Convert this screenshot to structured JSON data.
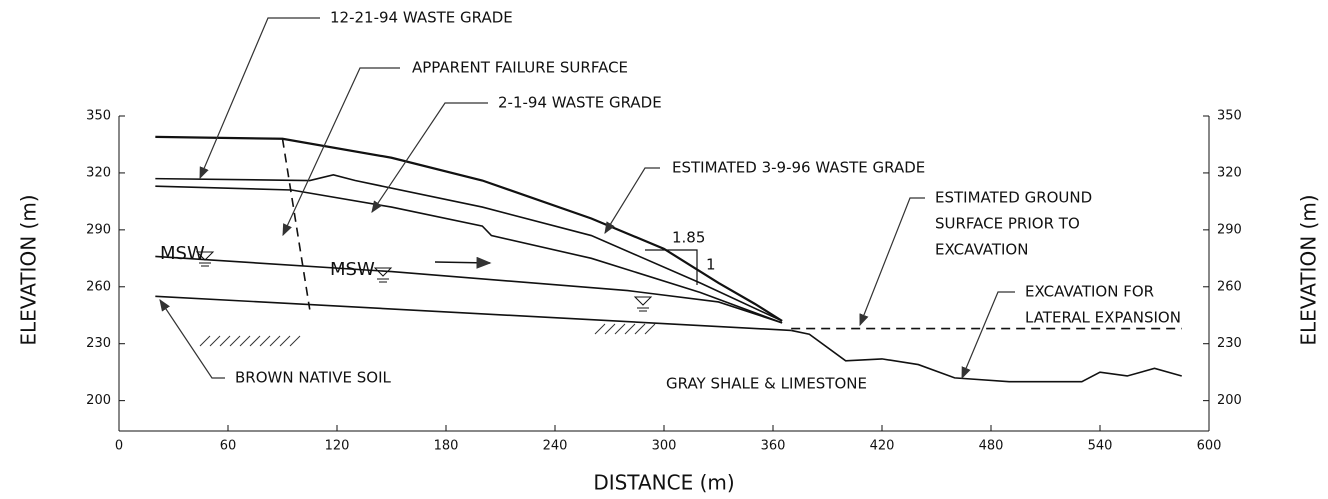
{
  "chart_data": {
    "type": "line",
    "xlabel": "DISTANCE (m)",
    "ylabel": "ELEVATION (m)",
    "xlim": [
      0,
      600
    ],
    "ylim": [
      184,
      350
    ],
    "xticks": [
      0,
      60,
      120,
      180,
      240,
      300,
      360,
      420,
      480,
      540,
      600
    ],
    "yticks": [
      200,
      230,
      260,
      290,
      320,
      350
    ],
    "y2lim": [
      184,
      350
    ],
    "y2ticks": [
      200,
      230,
      260,
      290,
      320,
      350
    ],
    "series": [
      {
        "color": "#111",
        "dashed": false,
        "x": [
          20,
          90,
          150,
          200,
          260,
          300,
          330,
          350,
          365
        ],
        "values": [
          339,
          338,
          328,
          316,
          296,
          280,
          262,
          251,
          242
        ]
      },
      {
        "color": "#111",
        "dashed": false,
        "x": [
          20,
          105,
          118,
          130,
          200,
          260,
          320,
          365
        ],
        "values": [
          317,
          316,
          319,
          316,
          302,
          287,
          262,
          242
        ]
      },
      {
        "color": "#111",
        "dashed": false,
        "x": [
          20,
          95,
          150,
          200,
          205,
          260,
          320,
          365
        ],
        "values": [
          313,
          311,
          302,
          292,
          287,
          275,
          257,
          241
        ]
      },
      {
        "color": "#111",
        "dashed": false,
        "x": [
          20,
          150,
          280,
          330,
          365
        ],
        "values": [
          276,
          268,
          258,
          252,
          241
        ]
      },
      {
        "color": "#111",
        "dashed": false,
        "x": [
          20,
          370
        ],
        "values": [
          255,
          237
        ]
      },
      {
        "color": "#111",
        "dashed": false,
        "x": [
          370,
          380,
          400,
          420,
          440,
          460,
          490,
          530,
          540,
          555,
          570,
          585
        ],
        "values": [
          237,
          235,
          221,
          222,
          219,
          212,
          210,
          210,
          215,
          213,
          217,
          213
        ]
      },
      {
        "color": "#111",
        "dashed": true,
        "x": [
          370,
          585
        ],
        "values": [
          238,
          238
        ]
      },
      {
        "color": "#111",
        "dashed": true,
        "x": [
          90,
          105
        ],
        "values": [
          338,
          248
        ]
      }
    ],
    "annotations": [
      {
        "lines": [
          "12-21-94 WASTE GRADE"
        ]
      },
      {
        "lines": [
          "APPARENT FAILURE SURFACE"
        ]
      },
      {
        "lines": [
          "2-1-94 WASTE GRADE"
        ]
      },
      {
        "lines": [
          "ESTIMATED 3-9-96 WASTE GRADE"
        ]
      },
      {
        "lines": [
          "ESTIMATED GROUND",
          "SURFACE PRIOR TO",
          "EXCAVATION"
        ]
      },
      {
        "lines": [
          "EXCAVATION FOR",
          "LATERAL EXPANSION"
        ]
      },
      {
        "lines": [
          "BROWN NATIVE SOIL"
        ]
      },
      {
        "lines": [
          "GRAY SHALE & LIMESTONE"
        ]
      },
      {
        "lines": [
          "MSW"
        ]
      },
      {
        "lines": [
          "MSW"
        ]
      },
      {
        "lines": [
          "1.85"
        ]
      },
      {
        "lines": [
          "1"
        ]
      }
    ]
  }
}
